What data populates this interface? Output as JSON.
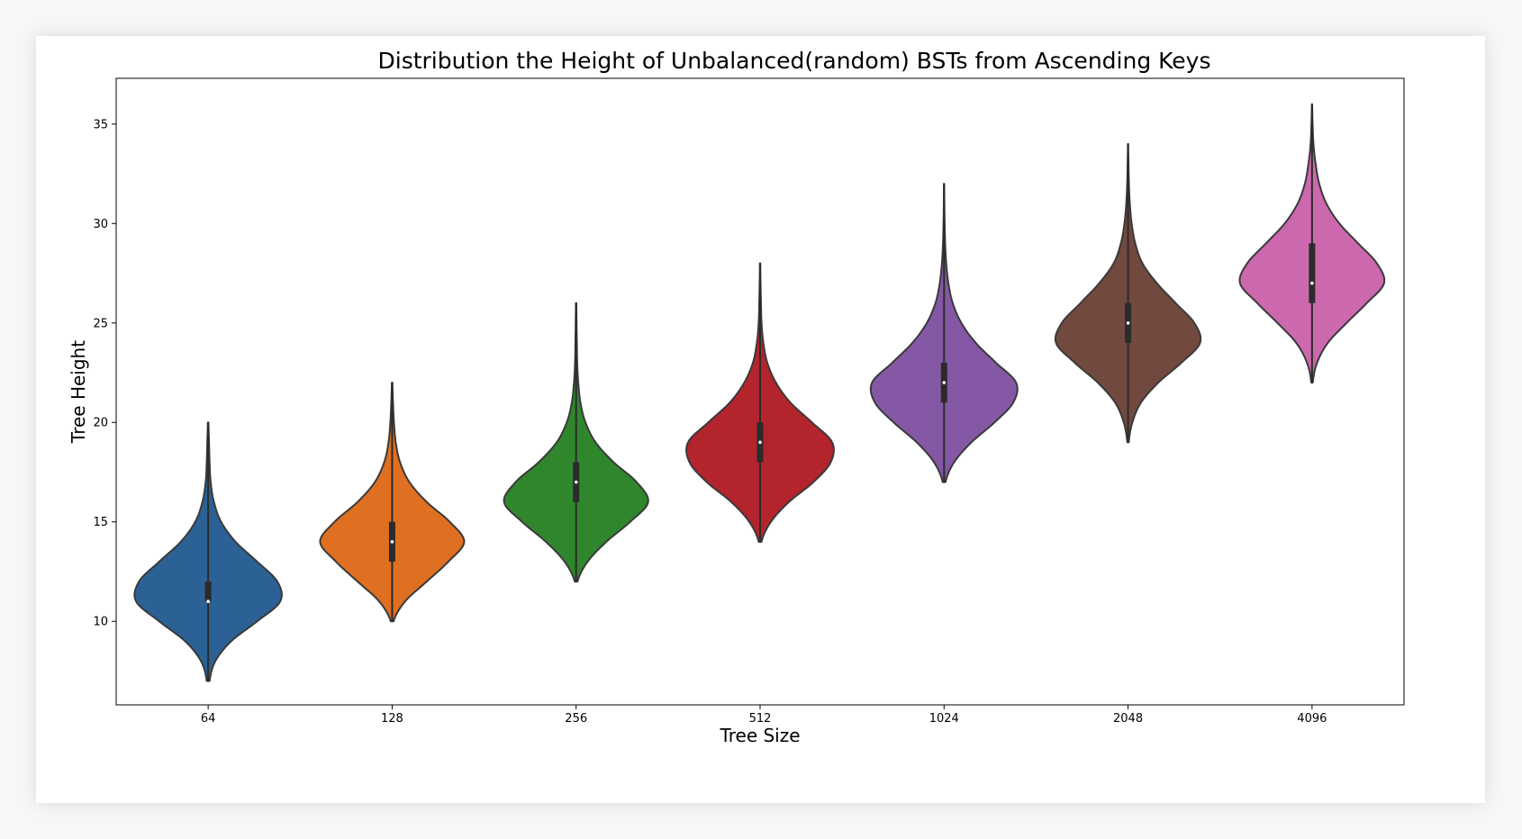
{
  "chart_data": {
    "type": "violin",
    "title": "Distribution the Height of Unbalanced(random) BSTs from Ascending Keys",
    "xlabel": "Tree Size",
    "ylabel": "Tree Height",
    "categories": [
      "64",
      "128",
      "256",
      "512",
      "1024",
      "2048",
      "4096"
    ],
    "yticks": [
      "10",
      "15",
      "20",
      "25",
      "30",
      "35"
    ],
    "ytick_values": [
      10,
      15,
      20,
      25,
      30,
      35
    ],
    "ylim": [
      5.8,
      37.3
    ],
    "grid": false,
    "legend": "none",
    "series": [
      {
        "category": "64",
        "color": "#2b6195",
        "min": 7,
        "q1": 11,
        "median": 11,
        "q3": 12,
        "max": 20,
        "density": [
          [
            7,
            0.02
          ],
          [
            8,
            0.1
          ],
          [
            9,
            0.32
          ],
          [
            10,
            0.68
          ],
          [
            11,
            1.0
          ],
          [
            12,
            0.96
          ],
          [
            13,
            0.68
          ],
          [
            14,
            0.38
          ],
          [
            15,
            0.18
          ],
          [
            16,
            0.08
          ],
          [
            17,
            0.035
          ],
          [
            18,
            0.02
          ],
          [
            19,
            0.012
          ],
          [
            20,
            0.004
          ]
        ]
      },
      {
        "category": "128",
        "color": "#df6f21",
        "min": 10,
        "q1": 13,
        "median": 14,
        "q3": 15,
        "max": 22,
        "density": [
          [
            10,
            0.02
          ],
          [
            11,
            0.18
          ],
          [
            12,
            0.48
          ],
          [
            13,
            0.78
          ],
          [
            14,
            1.0
          ],
          [
            15,
            0.8
          ],
          [
            16,
            0.48
          ],
          [
            17,
            0.24
          ],
          [
            18,
            0.11
          ],
          [
            19,
            0.05
          ],
          [
            20,
            0.025
          ],
          [
            21,
            0.012
          ],
          [
            22,
            0.004
          ]
        ]
      },
      {
        "category": "256",
        "color": "#2f862d",
        "min": 12,
        "q1": 16,
        "median": 17,
        "q3": 18,
        "max": 26,
        "density": [
          [
            12,
            0.02
          ],
          [
            13,
            0.16
          ],
          [
            14,
            0.42
          ],
          [
            15,
            0.75
          ],
          [
            16,
            1.0
          ],
          [
            17,
            0.84
          ],
          [
            18,
            0.52
          ],
          [
            19,
            0.27
          ],
          [
            20,
            0.13
          ],
          [
            21,
            0.06
          ],
          [
            22,
            0.03
          ],
          [
            23,
            0.015
          ],
          [
            24,
            0.01
          ],
          [
            25,
            0.006
          ],
          [
            26,
            0.003
          ]
        ]
      },
      {
        "category": "512",
        "color": "#b3242c",
        "min": 14,
        "q1": 18,
        "median": 19,
        "q3": 20,
        "max": 28,
        "density": [
          [
            14,
            0.02
          ],
          [
            15,
            0.15
          ],
          [
            16,
            0.4
          ],
          [
            17,
            0.74
          ],
          [
            18,
            0.98
          ],
          [
            19,
            1.0
          ],
          [
            20,
            0.72
          ],
          [
            21,
            0.42
          ],
          [
            22,
            0.22
          ],
          [
            23,
            0.1
          ],
          [
            24,
            0.045
          ],
          [
            25,
            0.02
          ],
          [
            26,
            0.012
          ],
          [
            27,
            0.006
          ],
          [
            28,
            0.003
          ]
        ]
      },
      {
        "category": "1024",
        "color": "#8458a4",
        "min": 17,
        "q1": 21,
        "median": 22,
        "q3": 23,
        "max": 32,
        "density": [
          [
            17,
            0.02
          ],
          [
            18,
            0.14
          ],
          [
            19,
            0.38
          ],
          [
            20,
            0.7
          ],
          [
            21,
            0.96
          ],
          [
            22,
            1.0
          ],
          [
            23,
            0.72
          ],
          [
            24,
            0.44
          ],
          [
            25,
            0.24
          ],
          [
            26,
            0.12
          ],
          [
            27,
            0.06
          ],
          [
            28,
            0.03
          ],
          [
            29,
            0.015
          ],
          [
            30,
            0.008
          ],
          [
            31,
            0.004
          ],
          [
            32,
            0.002
          ]
        ]
      },
      {
        "category": "2048",
        "color": "#71493e",
        "min": 19,
        "q1": 24,
        "median": 25,
        "q3": 26,
        "max": 34,
        "density": [
          [
            19,
            0.01
          ],
          [
            20,
            0.06
          ],
          [
            21,
            0.18
          ],
          [
            22,
            0.42
          ],
          [
            23,
            0.74
          ],
          [
            24,
            1.0
          ],
          [
            25,
            0.92
          ],
          [
            26,
            0.66
          ],
          [
            27,
            0.4
          ],
          [
            28,
            0.2
          ],
          [
            29,
            0.1
          ],
          [
            30,
            0.05
          ],
          [
            31,
            0.025
          ],
          [
            32,
            0.012
          ],
          [
            33,
            0.006
          ],
          [
            34,
            0.002
          ]
        ]
      },
      {
        "category": "4096",
        "color": "#cc68ad",
        "min": 22,
        "q1": 26,
        "median": 27,
        "q3": 29,
        "max": 36,
        "density": [
          [
            22,
            0.01
          ],
          [
            23,
            0.07
          ],
          [
            24,
            0.22
          ],
          [
            25,
            0.48
          ],
          [
            26,
            0.76
          ],
          [
            27,
            1.0
          ],
          [
            28,
            0.9
          ],
          [
            29,
            0.64
          ],
          [
            30,
            0.38
          ],
          [
            31,
            0.2
          ],
          [
            32,
            0.1
          ],
          [
            33,
            0.05
          ],
          [
            34,
            0.02
          ],
          [
            35,
            0.008
          ],
          [
            36,
            0.002
          ]
        ]
      }
    ]
  }
}
